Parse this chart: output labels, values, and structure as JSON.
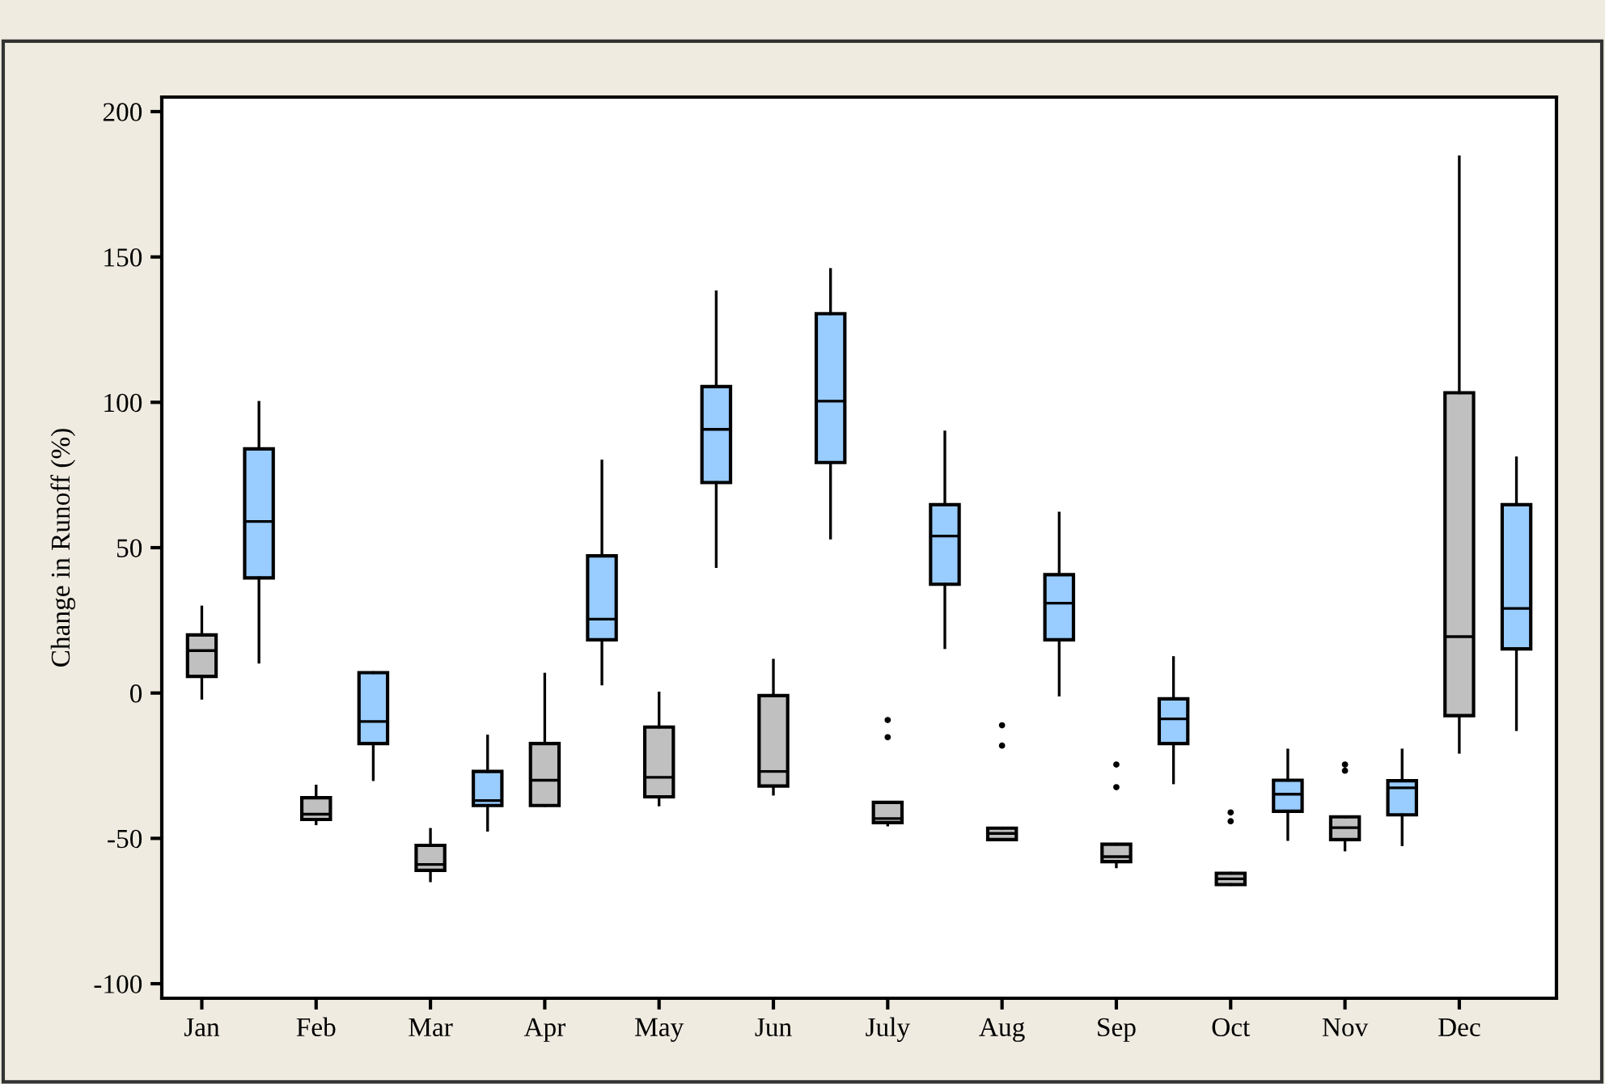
{
  "chart_data": {
    "type": "box",
    "ylabel": "Change in Runoff (%)",
    "categories": [
      "Jan",
      null,
      "Feb",
      null,
      "Mar",
      null,
      "Apr",
      null,
      "May",
      null,
      "Jun",
      null,
      "July",
      null,
      "Aug",
      null,
      "Sep",
      null,
      "Oct",
      null,
      "Nov",
      null,
      "Dec",
      null
    ],
    "ylim": [
      -105,
      205
    ],
    "yticks": [
      -100,
      -50,
      0,
      50,
      100,
      150,
      200
    ],
    "grid": false,
    "legend": false,
    "series": [
      {
        "color": "#c0c0c0",
        "boxes": [
          {
            "low": -1.8,
            "q1": 5.7,
            "median": 14.6,
            "q3": 20,
            "high": 29.6
          },
          null,
          {
            "low": -45,
            "q1": -43.5,
            "median": -41.7,
            "q3": -36,
            "high": -32
          },
          null,
          {
            "low": -64.6,
            "q1": -61,
            "median": -59,
            "q3": -52.4,
            "high": -46.9
          },
          null,
          {
            "low": -38.7,
            "q1": -38.7,
            "median": -30,
            "q3": -17.4,
            "high": 6.5
          },
          null,
          {
            "low": -38.5,
            "q1": -35.7,
            "median": -29,
            "q3": -11.7,
            "high": 0
          },
          null,
          {
            "low": -34.8,
            "q1": -32,
            "median": -27,
            "q3": -0.9,
            "high": 11.3
          },
          null,
          {
            "low": -45.4,
            "q1": -44.6,
            "median": -43.2,
            "q3": -37.6,
            "high": -37.6,
            "outliers": [
              -9.3,
              -15.2
            ]
          },
          null,
          {
            "low": -50.4,
            "q1": -50.4,
            "median": -48.3,
            "q3": -46.5,
            "high": -46.5,
            "outliers": [
              -11.1,
              -18.1
            ]
          },
          null,
          {
            "low": -59.8,
            "q1": -58,
            "median": -56.3,
            "q3": -52,
            "high": -52,
            "outliers": [
              -24.6,
              -32.4
            ]
          },
          null,
          {
            "low": -65.9,
            "q1": -65.9,
            "median": -63.9,
            "q3": -62,
            "high": -62,
            "outliers": [
              -41.1,
              -44.1
            ]
          },
          null,
          {
            "low": -54,
            "q1": -50.4,
            "median": -46.3,
            "q3": -42.6,
            "high": -42.6,
            "outliers": [
              -24.6,
              -26.7
            ]
          },
          null,
          {
            "low": -20.4,
            "q1": -7.8,
            "median": 19.4,
            "q3": 103.3,
            "high": 184.4
          },
          null
        ]
      },
      {
        "color": "#99ccff",
        "boxes": [
          null,
          {
            "low": 10.6,
            "q1": 39.6,
            "median": 59,
            "q3": 84,
            "high": 100
          },
          null,
          {
            "low": -29.8,
            "q1": -17.4,
            "median": -9.8,
            "q3": 7,
            "high": 7
          },
          null,
          {
            "low": -47.2,
            "q1": -38.7,
            "median": -37,
            "q3": -27,
            "high": -14.8
          },
          null,
          {
            "low": 3.1,
            "q1": 18.3,
            "median": 25.4,
            "q3": 47.2,
            "high": 79.8
          },
          null,
          {
            "low": 43.5,
            "q1": 72.4,
            "median": 90.7,
            "q3": 105.4,
            "high": 138
          },
          null,
          {
            "low": 53.3,
            "q1": 79.3,
            "median": 100.4,
            "q3": 130.5,
            "high": 145.7
          },
          null,
          {
            "low": 15.6,
            "q1": 37.4,
            "median": 54,
            "q3": 64.8,
            "high": 89.8
          },
          null,
          {
            "low": -0.7,
            "q1": 18.3,
            "median": 30.9,
            "q3": 40.7,
            "high": 61.9
          },
          null,
          {
            "low": -30.9,
            "q1": -17.4,
            "median": -8.9,
            "q3": -2,
            "high": 12.2
          },
          null,
          {
            "low": -50.4,
            "q1": -40.7,
            "median": -34.8,
            "q3": -30,
            "high": -19.6
          },
          null,
          {
            "low": -52.2,
            "q1": -41.9,
            "median": -32.6,
            "q3": -30.2,
            "high": -19.6
          },
          null,
          {
            "low": -12.6,
            "q1": 15.2,
            "median": 29.1,
            "q3": 64.8,
            "high": 80.9
          }
        ]
      }
    ]
  }
}
